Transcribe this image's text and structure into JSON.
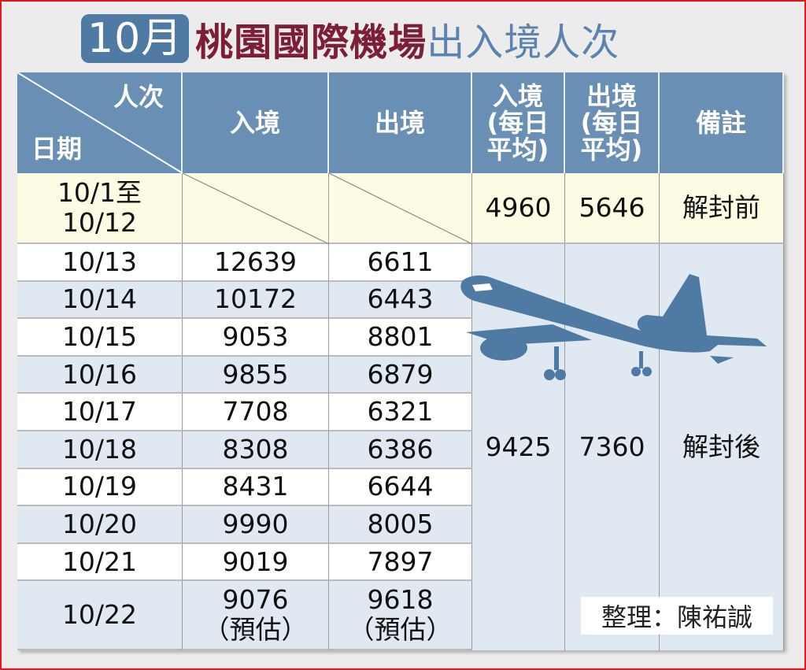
{
  "title": {
    "month": "10月",
    "airport": "桃園國際機場",
    "subject": "出入境人次"
  },
  "colors": {
    "header": "#6a8fb5",
    "title_month_bg": "#4f7aa3",
    "title_airport": "#7b1e36",
    "title_subject": "#5b83ad",
    "pre_row": "#fdfbe4",
    "alt_row": "#e0e8f1",
    "plane": "#4f7aa3",
    "border": "#e8141e"
  },
  "chart_data": {
    "type": "table",
    "corner": {
      "top": "人次",
      "bottom": "日期"
    },
    "columns": [
      "入境",
      "出境",
      "入境\n(每日\n平均)",
      "出境\n(每日\n平均)",
      "備註"
    ],
    "pre_period": {
      "date": "10/1至\n10/12",
      "avg_in": "4960",
      "avg_out": "5646",
      "note": "解封前"
    },
    "rows": [
      {
        "date": "10/13",
        "in": "12639",
        "out": "6611"
      },
      {
        "date": "10/14",
        "in": "10172",
        "out": "6443"
      },
      {
        "date": "10/15",
        "in": "9053",
        "out": "8801"
      },
      {
        "date": "10/16",
        "in": "9855",
        "out": "6879"
      },
      {
        "date": "10/17",
        "in": "7708",
        "out": "6321"
      },
      {
        "date": "10/18",
        "in": "8308",
        "out": "6386"
      },
      {
        "date": "10/19",
        "in": "8431",
        "out": "6644"
      },
      {
        "date": "10/20",
        "in": "9990",
        "out": "8005"
      },
      {
        "date": "10/21",
        "in": "9019",
        "out": "7897"
      },
      {
        "date": "10/22",
        "in": "9076\n（預估）",
        "out": "9618\n（預估）"
      }
    ],
    "post_period": {
      "avg_in": "9425",
      "avg_out": "7360",
      "note": "解封後"
    }
  },
  "credit": "整理：陳祐誠",
  "icons": {
    "illustration": "airplane-icon"
  }
}
